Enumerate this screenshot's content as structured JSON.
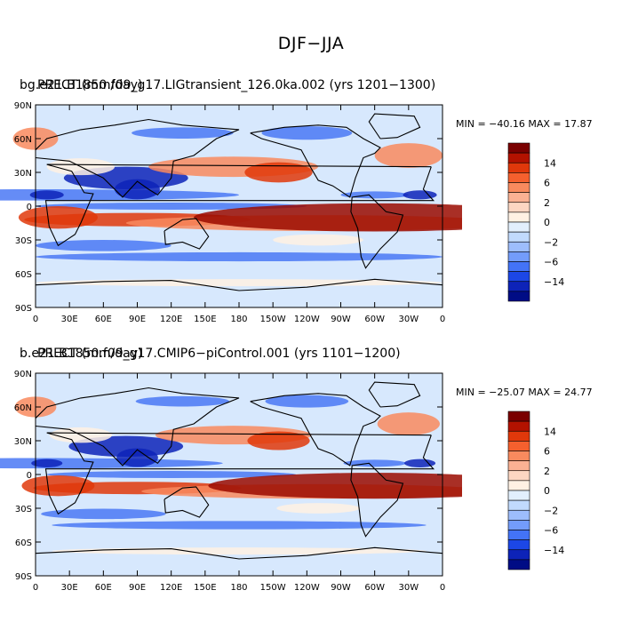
{
  "figure_title": "DJF−JJA",
  "panels": [
    {
      "title_a": "bg.e21.B1850.f09_g17.LIGtransient_126.0ka.002 (yrs 1201−1300)",
      "title_b": "PRECT (mm/day)",
      "stats": "MIN = −40.16  MAX =  17.87"
    },
    {
      "title_a": "b.e21.B1850.f09_g17.CMIP6−piControl.001 (yrs 1101−1200)",
      "title_b": "PRECT (mm/day)",
      "stats": "MIN = −25.07  MAX =  24.77"
    }
  ],
  "chart_data": [
    {
      "type": "heatmap",
      "title": "bg.e21.B1850.f09_g17.LIGtransient_126.0ka.002 (yrs 1201−1300)",
      "variable": "PRECT (mm/day)",
      "min": -40.16,
      "max": 17.87,
      "x_ticks": [
        "0",
        "30E",
        "60E",
        "90E",
        "120E",
        "150E",
        "180",
        "150W",
        "120W",
        "90W",
        "60W",
        "30W",
        "0"
      ],
      "y_ticks": [
        "90N",
        "60N",
        "30N",
        "0",
        "30S",
        "60S",
        "90S"
      ],
      "xlim": [
        0,
        360
      ],
      "ylim": [
        -90,
        90
      ]
    },
    {
      "type": "heatmap",
      "title": "b.e21.B1850.f09_g17.CMIP6−piControl.001 (yrs 1101−1200)",
      "variable": "PRECT (mm/day)",
      "min": -25.07,
      "max": 24.77,
      "x_ticks": [
        "0",
        "30E",
        "60E",
        "90E",
        "120E",
        "150E",
        "180",
        "150W",
        "120W",
        "90W",
        "60W",
        "30W",
        "0"
      ],
      "y_ticks": [
        "90N",
        "60N",
        "30N",
        "0",
        "30S",
        "60S",
        "90S"
      ],
      "xlim": [
        0,
        360
      ],
      "ylim": [
        -90,
        90
      ]
    }
  ],
  "colorbar": {
    "levels": [
      "14",
      "6",
      "2",
      "0",
      "−2",
      "−6",
      "−14"
    ],
    "colors": [
      "#7a0000",
      "#b31200",
      "#e0380b",
      "#f5602e",
      "#f98a5e",
      "#fbb193",
      "#fdd6c2",
      "#fff1e3",
      "#e2effd",
      "#c1dafd",
      "#9dbdfc",
      "#739cfb",
      "#4373f7",
      "#1c47e6",
      "#0d23b8",
      "#000c85"
    ]
  },
  "palette": {
    "deep_blue": "#0d23b8",
    "blue": "#4a78f5",
    "light_blue": "#d7e8fd",
    "pale": "#fff1e3",
    "orange": "#f98a5e",
    "red": "#e0380b",
    "dark_red": "#9a0a00"
  }
}
